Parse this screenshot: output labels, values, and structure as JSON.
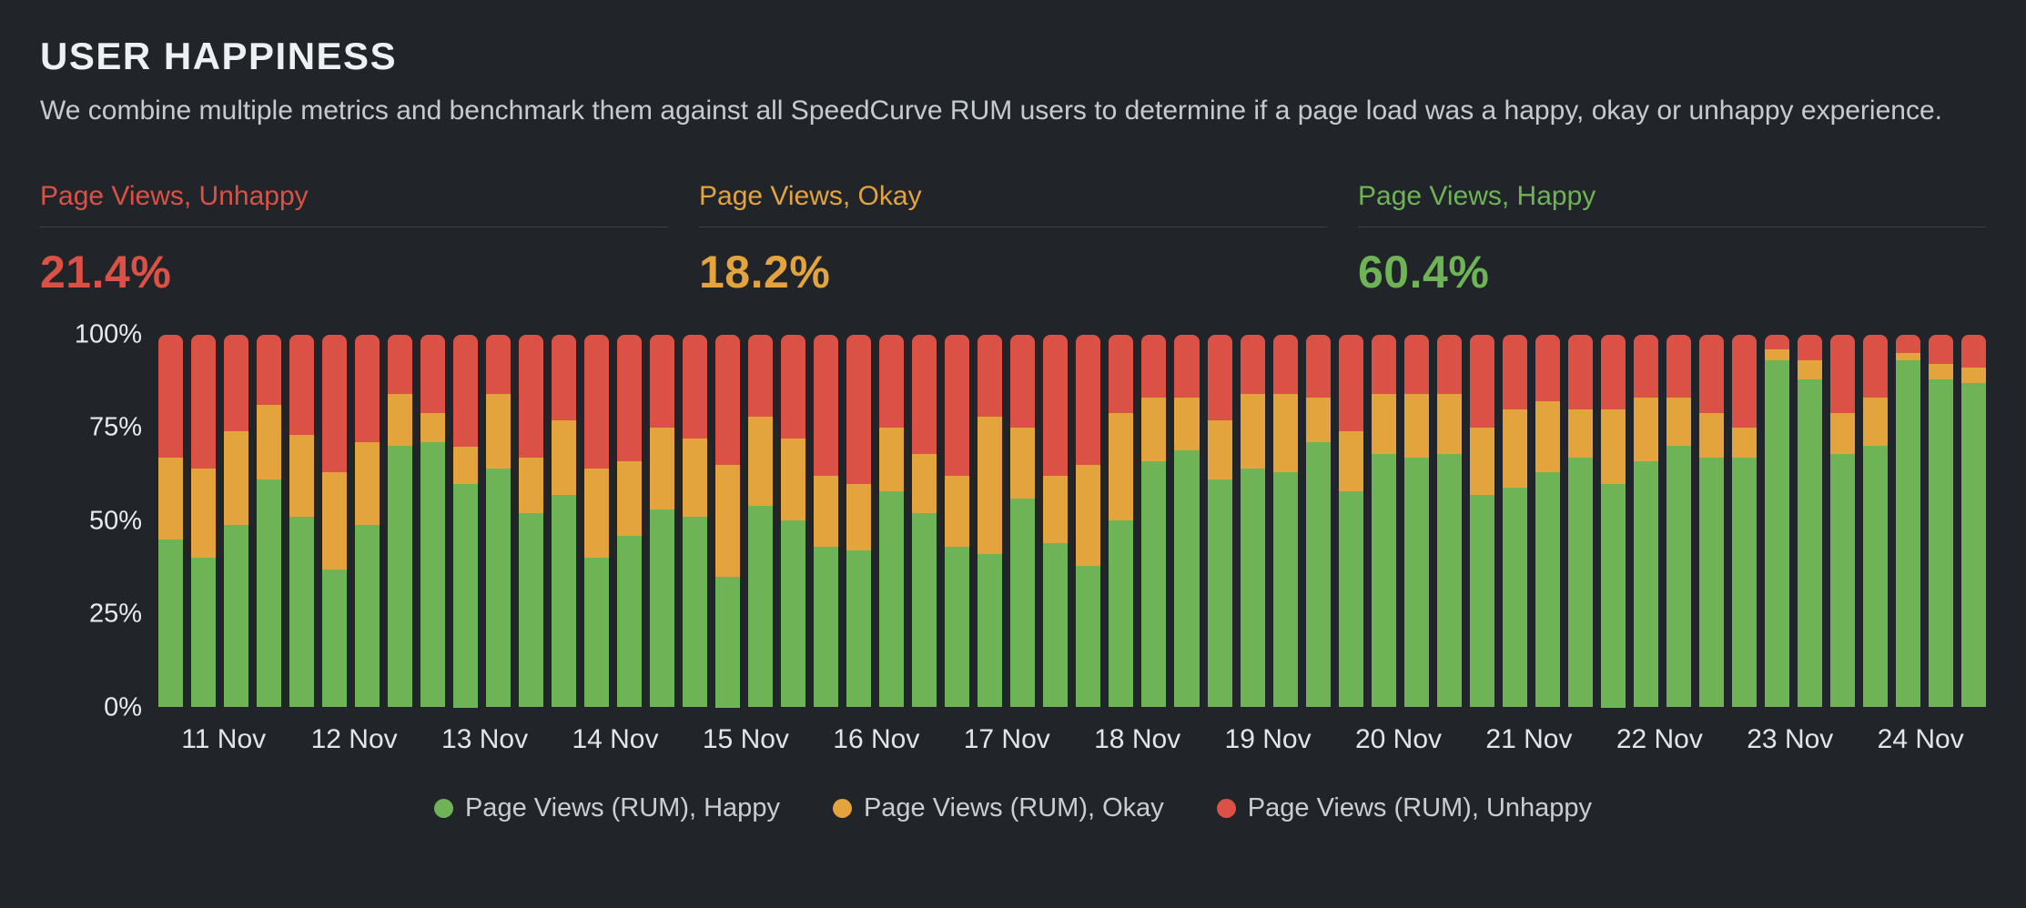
{
  "header": {
    "title": "USER HAPPINESS",
    "subtitle": "We combine multiple metrics and benchmark them against all SpeedCurve RUM users to determine if a page load was a happy, okay or unhappy experience."
  },
  "kpis": [
    {
      "id": "unhappy",
      "label": "Page Views, Unhappy",
      "value": "21.4%",
      "color": "#dc5145"
    },
    {
      "id": "okay",
      "label": "Page Views, Okay",
      "value": "18.2%",
      "color": "#e3a43e"
    },
    {
      "id": "happy",
      "label": "Page Views, Happy",
      "value": "60.4%",
      "color": "#6eb457"
    }
  ],
  "legend": [
    {
      "id": "happy",
      "label": "Page Views (RUM), Happy",
      "color": "#6eb457"
    },
    {
      "id": "okay",
      "label": "Page Views (RUM), Okay",
      "color": "#e3a43e"
    },
    {
      "id": "unhappy",
      "label": "Page Views (RUM), Unhappy",
      "color": "#dc5145"
    }
  ],
  "chart_data": {
    "type": "bar",
    "variant": "100-percent-stacked-column",
    "title": "User Happiness page views breakdown",
    "xlabel": "",
    "ylabel": "",
    "ylim": [
      0,
      100
    ],
    "grid": false,
    "legend_position": "bottom",
    "bars_per_day": 4,
    "categories": [
      "11 Nov",
      "12 Nov",
      "13 Nov",
      "14 Nov",
      "15 Nov",
      "16 Nov",
      "17 Nov",
      "18 Nov",
      "19 Nov",
      "20 Nov",
      "21 Nov",
      "22 Nov",
      "23 Nov",
      "24 Nov"
    ],
    "y_ticks": [
      {
        "label": "100%",
        "value": 100
      },
      {
        "label": "75%",
        "value": 75
      },
      {
        "label": "50%",
        "value": 50
      },
      {
        "label": "25%",
        "value": 25
      },
      {
        "label": "0%",
        "value": 0
      }
    ],
    "series": [
      {
        "key": "happy",
        "name": "Page Views (RUM), Happy",
        "color": "#6eb457",
        "values": [
          45,
          40,
          49,
          61,
          51,
          37,
          49,
          70,
          71,
          60,
          64,
          52,
          57,
          40,
          46,
          53,
          51,
          35,
          54,
          50,
          43,
          42,
          58,
          52,
          43,
          41,
          56,
          44,
          38,
          50,
          66,
          69,
          61,
          64,
          63,
          71,
          58,
          68,
          67,
          68,
          57,
          59,
          63,
          67,
          60,
          66,
          70,
          67,
          67,
          93,
          88,
          68,
          70,
          93,
          88,
          87
        ]
      },
      {
        "key": "okay",
        "name": "Page Views (RUM), Okay",
        "color": "#e3a43e",
        "values": [
          22,
          24,
          25,
          20,
          22,
          26,
          22,
          14,
          8,
          10,
          20,
          15,
          20,
          24,
          20,
          22,
          21,
          30,
          24,
          22,
          19,
          18,
          17,
          16,
          19,
          37,
          19,
          18,
          27,
          29,
          17,
          14,
          16,
          20,
          21,
          12,
          16,
          16,
          17,
          16,
          18,
          21,
          19,
          13,
          20,
          17,
          13,
          12,
          8,
          3,
          5,
          11,
          13,
          2,
          4,
          4
        ]
      },
      {
        "key": "unhappy",
        "name": "Page Views (RUM), Unhappy",
        "color": "#dc5145",
        "values": [
          33,
          36,
          26,
          19,
          27,
          37,
          29,
          16,
          21,
          30,
          16,
          33,
          23,
          36,
          34,
          25,
          28,
          35,
          22,
          28,
          38,
          40,
          25,
          32,
          38,
          22,
          25,
          38,
          35,
          21,
          17,
          17,
          23,
          16,
          16,
          17,
          26,
          16,
          16,
          16,
          25,
          20,
          18,
          20,
          20,
          17,
          17,
          21,
          25,
          4,
          7,
          21,
          17,
          5,
          8,
          9
        ]
      }
    ]
  }
}
